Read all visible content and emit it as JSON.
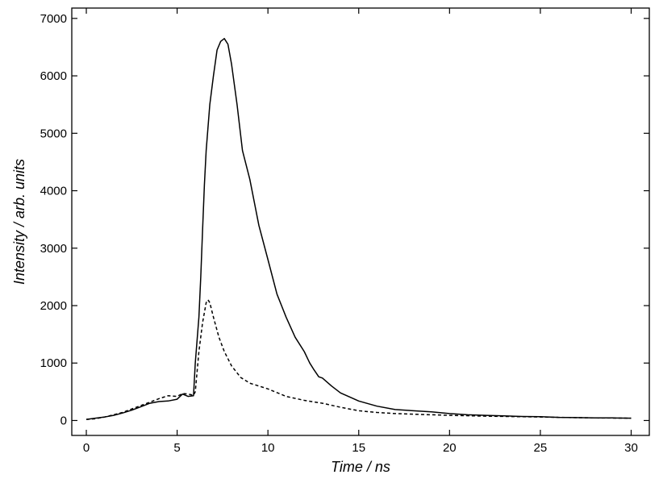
{
  "chart_data": {
    "type": "line",
    "xlabel": "Time / ns",
    "ylabel": "Intensity / arb. units",
    "xlim": [
      -0.8,
      31
    ],
    "ylim": [
      -260,
      7180
    ],
    "xticks": [
      0,
      5,
      10,
      15,
      20,
      25,
      30
    ],
    "yticks": [
      0,
      1000,
      2000,
      3000,
      4000,
      5000,
      6000,
      7000
    ],
    "grid": false,
    "legend": "none",
    "series": [
      {
        "style": "solid",
        "color": "#000000",
        "x": [
          0,
          0.5,
          1,
          1.5,
          2,
          2.5,
          3,
          3.5,
          4,
          4.5,
          5,
          5.3,
          5.6,
          5.9,
          6.0,
          6.2,
          6.3,
          6.4,
          6.5,
          6.6,
          6.8,
          7.0,
          7.2,
          7.4,
          7.6,
          7.8,
          8.0,
          8.3,
          8.6,
          9.0,
          9.5,
          10.0,
          10.5,
          11.0,
          11.5,
          12.0,
          12.3,
          12.5,
          12.8,
          13.0,
          13.5,
          14.0,
          14.5,
          15.0,
          16.0,
          17.0,
          18.0,
          19.0,
          20.0,
          21.0,
          22.0,
          23.0,
          24.0,
          25.0,
          26.0,
          27.0,
          28.0,
          29.0,
          30.0
        ],
        "y": [
          20,
          40,
          60,
          90,
          130,
          180,
          240,
          300,
          330,
          340,
          370,
          460,
          420,
          430,
          1000,
          1800,
          2500,
          3300,
          4100,
          4700,
          5500,
          6000,
          6450,
          6600,
          6650,
          6550,
          6200,
          5500,
          4700,
          4200,
          3400,
          2800,
          2200,
          1800,
          1450,
          1200,
          1000,
          900,
          760,
          740,
          600,
          480,
          410,
          340,
          250,
          190,
          170,
          150,
          120,
          100,
          90,
          80,
          70,
          65,
          55,
          50,
          45,
          45,
          40
        ]
      },
      {
        "style": "dashed",
        "color": "#000000",
        "x": [
          0,
          0.5,
          1,
          1.5,
          2,
          2.5,
          3,
          3.5,
          4,
          4.5,
          5,
          5.3,
          5.6,
          5.9,
          6.0,
          6.2,
          6.4,
          6.6,
          6.7,
          6.8,
          7.0,
          7.3,
          7.6,
          8.0,
          8.5,
          9.0,
          10.0,
          11.0,
          12.0,
          13.0,
          14.0,
          15.0,
          16.0,
          17.0,
          18.0,
          19.0,
          20.0,
          22.0,
          24.0,
          26.0,
          28.0,
          30.0
        ],
        "y": [
          20,
          30,
          60,
          100,
          140,
          200,
          260,
          320,
          380,
          430,
          420,
          470,
          460,
          440,
          500,
          1200,
          1700,
          2050,
          2100,
          2050,
          1800,
          1450,
          1200,
          950,
          750,
          650,
          550,
          420,
          350,
          300,
          230,
          170,
          140,
          120,
          110,
          100,
          90,
          75,
          65,
          55,
          45,
          40
        ]
      }
    ]
  }
}
